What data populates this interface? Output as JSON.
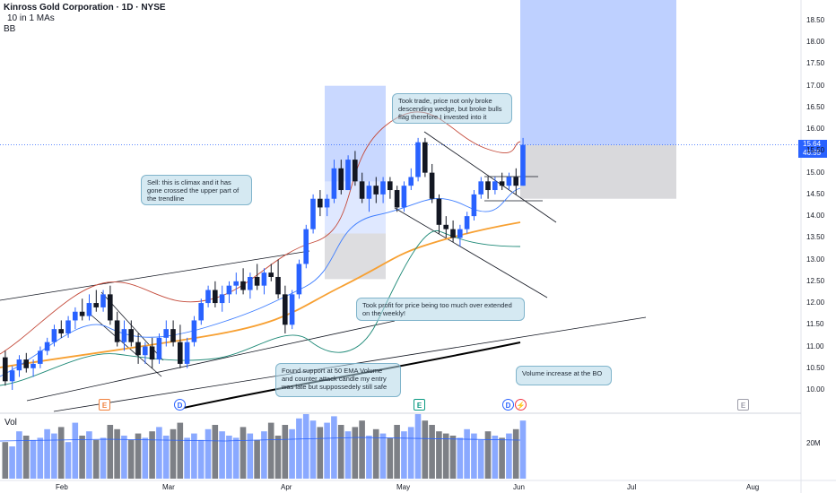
{
  "header": {
    "title": "Kinross Gold Corporation · 1D · NYSE",
    "indicator_ma": "10 in 1 MAs",
    "indicator_bb": "BB"
  },
  "price_axis": {
    "ticks": [
      "18.50",
      "18.00",
      "17.50",
      "17.00",
      "16.50",
      "16.00",
      "15.50",
      "15.00",
      "14.50",
      "14.00",
      "13.50",
      "13.00",
      "12.50",
      "12.00",
      "11.50",
      "11.00",
      "10.50",
      "10.00"
    ],
    "current_price": "15.64",
    "countdown": "46:55"
  },
  "volume": {
    "label": "Vol",
    "tick": "20M"
  },
  "time_axis": {
    "ticks": [
      "Feb",
      "Mar",
      "Apr",
      "May",
      "Jun",
      "Jul",
      "Aug"
    ]
  },
  "annotations": {
    "sell_note": "Sell: this is climax and it has gone crossed the upper part of the trendline",
    "trade_note": "Took trade, price not only broke descending wedge, but broke bulls flag therefore I invested into it",
    "profit_note": "Took profit for price being too much over extended on the weekly!",
    "support_note": "Found support at 50 EMA Volume and counter attack candle my entry was late but suppossedely still safe",
    "volume_note": "Volume increase at the BO"
  },
  "event_markers": [
    {
      "letter": "E",
      "color": "#f0803c"
    },
    {
      "letter": "D",
      "color": "#2962ff"
    },
    {
      "letter": "E",
      "color": "#089981"
    },
    {
      "letter": "D",
      "color": "#2962ff"
    },
    {
      "letter": "⚡",
      "color": "#f23645"
    },
    {
      "letter": "E",
      "color": "#9c9ca8"
    }
  ],
  "colors": {
    "up_candle": "#2962ff",
    "down_candle": "#131722",
    "ema_50": "#f7a032",
    "ema_200": "#000000",
    "bb_upper": "#c44a3a",
    "bb_lower": "#1f8a78",
    "ma_blue": "#3d7dff"
  },
  "chart_data": {
    "type": "candlestick",
    "title": "Kinross Gold Corporation · 1D · NYSE",
    "ylim": [
      9.8,
      18.8
    ],
    "xlabel": "",
    "ylabel": "",
    "candles": [
      [
        10.75,
        10.9,
        10.1,
        10.2
      ],
      [
        10.2,
        10.55,
        10.0,
        10.45
      ],
      [
        10.45,
        10.8,
        10.3,
        10.7
      ],
      [
        10.7,
        10.85,
        10.4,
        10.5
      ],
      [
        10.5,
        10.7,
        10.3,
        10.6
      ],
      [
        10.6,
        11.0,
        10.5,
        10.9
      ],
      [
        10.9,
        11.2,
        10.8,
        11.1
      ],
      [
        11.1,
        11.5,
        11.0,
        11.4
      ],
      [
        11.4,
        11.6,
        11.2,
        11.3
      ],
      [
        11.3,
        11.7,
        11.2,
        11.6
      ],
      [
        11.6,
        11.9,
        11.4,
        11.8
      ],
      [
        11.8,
        12.1,
        11.6,
        11.7
      ],
      [
        11.7,
        12.2,
        11.6,
        12.0
      ],
      [
        12.0,
        12.3,
        11.8,
        11.9
      ],
      [
        11.9,
        12.3,
        11.8,
        12.2
      ],
      [
        12.2,
        12.4,
        11.5,
        11.6
      ],
      [
        11.6,
        11.8,
        11.0,
        11.1
      ],
      [
        11.1,
        11.6,
        10.9,
        11.4
      ],
      [
        11.4,
        11.6,
        11.0,
        11.1
      ],
      [
        11.1,
        11.3,
        10.6,
        10.8
      ],
      [
        10.8,
        11.1,
        10.6,
        11.0
      ],
      [
        11.0,
        11.2,
        10.5,
        10.7
      ],
      [
        10.7,
        11.3,
        10.6,
        11.2
      ],
      [
        11.2,
        11.6,
        11.0,
        11.4
      ],
      [
        11.4,
        11.6,
        11.0,
        11.1
      ],
      [
        11.1,
        11.5,
        10.5,
        10.6
      ],
      [
        10.6,
        11.2,
        10.5,
        11.1
      ],
      [
        11.1,
        11.7,
        11.0,
        11.6
      ],
      [
        11.6,
        12.1,
        11.5,
        12.0
      ],
      [
        12.0,
        12.4,
        11.9,
        12.3
      ],
      [
        12.3,
        12.5,
        11.9,
        12.0
      ],
      [
        12.0,
        12.4,
        11.8,
        12.2
      ],
      [
        12.2,
        12.5,
        12.0,
        12.4
      ],
      [
        12.4,
        12.7,
        12.2,
        12.5
      ],
      [
        12.5,
        12.8,
        12.2,
        12.3
      ],
      [
        12.3,
        12.7,
        12.1,
        12.6
      ],
      [
        12.6,
        12.9,
        12.3,
        12.4
      ],
      [
        12.4,
        12.8,
        12.2,
        12.7
      ],
      [
        12.7,
        12.9,
        12.5,
        12.6
      ],
      [
        12.6,
        13.0,
        12.1,
        12.2
      ],
      [
        12.2,
        12.4,
        11.3,
        11.5
      ],
      [
        11.5,
        12.3,
        11.4,
        12.2
      ],
      [
        12.2,
        13.0,
        12.1,
        12.9
      ],
      [
        12.9,
        13.8,
        12.8,
        13.7
      ],
      [
        13.7,
        14.5,
        13.6,
        14.4
      ],
      [
        14.4,
        14.6,
        14.0,
        14.2
      ],
      [
        14.2,
        14.5,
        14.0,
        14.4
      ],
      [
        14.4,
        15.3,
        14.3,
        15.1
      ],
      [
        15.1,
        15.3,
        14.5,
        14.6
      ],
      [
        14.6,
        15.4,
        14.6,
        15.3
      ],
      [
        15.3,
        15.5,
        14.7,
        14.8
      ],
      [
        14.8,
        15.0,
        14.3,
        14.4
      ],
      [
        14.4,
        14.8,
        14.1,
        14.7
      ],
      [
        14.7,
        14.9,
        14.3,
        14.5
      ],
      [
        14.5,
        14.9,
        14.3,
        14.8
      ],
      [
        14.8,
        14.9,
        14.4,
        14.6
      ],
      [
        14.6,
        14.7,
        14.1,
        14.2
      ],
      [
        14.2,
        14.8,
        14.1,
        14.7
      ],
      [
        14.7,
        15.1,
        14.6,
        14.9
      ],
      [
        14.9,
        15.8,
        14.8,
        15.7
      ],
      [
        15.7,
        15.8,
        14.9,
        15.0
      ],
      [
        15.0,
        15.2,
        14.3,
        14.4
      ],
      [
        14.4,
        14.5,
        13.6,
        13.8
      ],
      [
        13.8,
        14.0,
        13.5,
        13.7
      ],
      [
        13.7,
        13.9,
        13.4,
        13.5
      ],
      [
        13.5,
        13.8,
        13.3,
        13.7
      ],
      [
        13.7,
        14.1,
        13.6,
        14.0
      ],
      [
        14.0,
        14.6,
        13.9,
        14.5
      ],
      [
        14.5,
        14.9,
        14.4,
        14.8
      ],
      [
        14.8,
        14.9,
        14.4,
        14.6
      ],
      [
        14.6,
        14.9,
        14.5,
        14.8
      ],
      [
        14.8,
        15.0,
        14.6,
        14.7
      ],
      [
        14.7,
        15.0,
        14.6,
        14.9
      ],
      [
        14.9,
        15.1,
        14.5,
        14.7
      ],
      [
        14.7,
        15.8,
        14.7,
        15.64
      ]
    ],
    "volume": [
      17,
      15,
      22,
      20,
      18,
      19,
      23,
      21,
      24,
      17,
      26,
      20,
      22,
      18,
      19,
      25,
      23,
      20,
      18,
      21,
      19,
      22,
      24,
      20,
      23,
      26,
      19,
      21,
      18,
      23,
      25,
      22,
      20,
      19,
      24,
      21,
      18,
      22,
      26,
      20,
      25,
      23,
      28,
      30,
      27,
      24,
      26,
      29,
      25,
      22,
      24,
      27,
      20,
      23,
      21,
      19,
      25,
      22,
      24,
      30,
      27,
      25,
      22,
      21,
      20,
      19,
      23,
      21,
      18,
      22,
      20,
      19,
      21,
      23,
      27
    ]
  }
}
